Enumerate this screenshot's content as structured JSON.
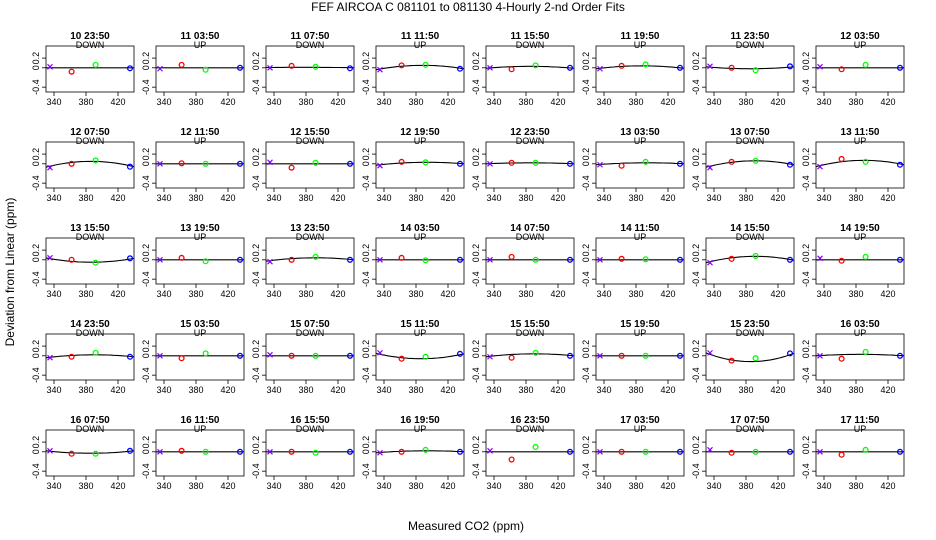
{
  "chart_data": {
    "type": "scatter",
    "title": "FEF   AIRCOA C   081101 to 081130   4-Hourly 2-nd Order Fits",
    "xlabel": "Measured CO2 (ppm)",
    "ylabel": "Deviation from Linear (ppm)",
    "xlim": [
      330,
      440
    ],
    "ylim": [
      -0.5,
      0.45
    ],
    "xticks": [
      340,
      380,
      420
    ],
    "yticks": [
      -0.4,
      0.0,
      0.2
    ],
    "ytick_labels": [
      "-0.4",
      "0",
      "0.2"
    ],
    "grid": false,
    "marker_x": [
      335,
      362,
      392,
      435
    ],
    "series": [
      {
        "color": "#8000ff",
        "marker": "x"
      },
      {
        "color": "#ff0000",
        "marker": "o"
      },
      {
        "color": "#00ff00",
        "marker": "o"
      },
      {
        "color": "#0000ff",
        "marker": "o"
      }
    ],
    "panels": [
      {
        "title": "10 23:50",
        "dir": "DOWN",
        "y": [
          0.02,
          -0.08,
          0.06,
          -0.01
        ],
        "curve": [
          0,
          0,
          0
        ]
      },
      {
        "title": "11 03:50",
        "dir": "UP",
        "y": [
          -0.02,
          0.06,
          -0.04,
          0.0
        ],
        "curve": [
          0,
          0,
          0
        ]
      },
      {
        "title": "11 07:50",
        "dir": "DOWN",
        "y": [
          0.0,
          0.04,
          0.02,
          -0.01
        ],
        "curve": [
          0.005,
          0.01,
          0.0
        ]
      },
      {
        "title": "11 11:50",
        "dir": "UP",
        "y": [
          -0.04,
          0.05,
          0.06,
          -0.02
        ],
        "curve": [
          -0.04,
          0.05,
          -0.02
        ]
      },
      {
        "title": "11 15:50",
        "dir": "DOWN",
        "y": [
          0.0,
          -0.03,
          0.05,
          0.0
        ],
        "curve": [
          -0.01,
          0.03,
          -0.01
        ]
      },
      {
        "title": "11 19:50",
        "dir": "UP",
        "y": [
          -0.02,
          0.04,
          0.07,
          0.0
        ],
        "curve": [
          -0.02,
          0.04,
          -0.01
        ]
      },
      {
        "title": "11 23:50",
        "dir": "DOWN",
        "y": [
          0.03,
          0.0,
          -0.05,
          0.03
        ],
        "curve": [
          0.02,
          -0.02,
          0.02
        ]
      },
      {
        "title": "12 03:50",
        "dir": "UP",
        "y": [
          0.02,
          -0.03,
          0.06,
          0.0
        ],
        "curve": [
          0,
          0,
          0
        ]
      },
      {
        "title": "12 07:50",
        "dir": "DOWN",
        "y": [
          -0.08,
          0.0,
          0.07,
          -0.06
        ],
        "curve": [
          -0.07,
          0.05,
          -0.06
        ]
      },
      {
        "title": "12 11:50",
        "dir": "UP",
        "y": [
          0.0,
          0.01,
          0.0,
          0.0
        ],
        "curve": [
          0,
          0,
          0
        ]
      },
      {
        "title": "12 15:50",
        "dir": "DOWN",
        "y": [
          0.03,
          -0.08,
          0.02,
          0.0
        ],
        "curve": [
          0,
          0,
          0
        ]
      },
      {
        "title": "12 19:50",
        "dir": "UP",
        "y": [
          -0.04,
          0.04,
          0.03,
          0.0
        ],
        "curve": [
          -0.03,
          0.03,
          0.0
        ]
      },
      {
        "title": "12 23:50",
        "dir": "DOWN",
        "y": [
          0.0,
          0.02,
          0.02,
          0.0
        ],
        "curve": [
          0,
          0.02,
          0
        ]
      },
      {
        "title": "13 03:50",
        "dir": "UP",
        "y": [
          -0.02,
          -0.04,
          0.04,
          0.0
        ],
        "curve": [
          -0.02,
          0.02,
          0.0
        ]
      },
      {
        "title": "13 07:50",
        "dir": "DOWN",
        "y": [
          -0.08,
          0.04,
          0.06,
          -0.02
        ],
        "curve": [
          -0.07,
          0.06,
          -0.02
        ]
      },
      {
        "title": "13 11:50",
        "dir": "UP",
        "y": [
          -0.06,
          0.1,
          0.04,
          -0.02
        ],
        "curve": [
          -0.06,
          0.07,
          -0.02
        ]
      },
      {
        "title": "13 15:50",
        "dir": "DOWN",
        "y": [
          0.04,
          0.0,
          -0.06,
          0.03
        ],
        "curve": [
          0.04,
          -0.05,
          0.03
        ]
      },
      {
        "title": "13 19:50",
        "dir": "UP",
        "y": [
          0.0,
          0.04,
          -0.03,
          0.0
        ],
        "curve": [
          0,
          0,
          0
        ]
      },
      {
        "title": "13 23:50",
        "dir": "DOWN",
        "y": [
          -0.04,
          0.0,
          0.06,
          0.0
        ],
        "curve": [
          -0.03,
          0.04,
          0.0
        ]
      },
      {
        "title": "14 03:50",
        "dir": "UP",
        "y": [
          0.0,
          0.04,
          -0.01,
          0.0
        ],
        "curve": [
          0,
          0,
          0
        ]
      },
      {
        "title": "14 07:50",
        "dir": "DOWN",
        "y": [
          0.0,
          0.06,
          0.0,
          0.0
        ],
        "curve": [
          0,
          0,
          0
        ]
      },
      {
        "title": "14 11:50",
        "dir": "UP",
        "y": [
          0.0,
          0.02,
          0.01,
          0.0
        ],
        "curve": [
          0,
          0,
          0
        ]
      },
      {
        "title": "14 15:50",
        "dir": "DOWN",
        "y": [
          -0.06,
          0.02,
          0.08,
          0.0
        ],
        "curve": [
          -0.06,
          0.07,
          -0.01
        ]
      },
      {
        "title": "14 19:50",
        "dir": "UP",
        "y": [
          0.03,
          -0.02,
          0.06,
          0.0
        ],
        "curve": [
          0,
          0,
          0
        ]
      },
      {
        "title": "14 23:50",
        "dir": "DOWN",
        "y": [
          -0.04,
          -0.02,
          0.06,
          -0.02
        ],
        "curve": [
          -0.04,
          0.02,
          -0.02
        ]
      },
      {
        "title": "15 03:50",
        "dir": "UP",
        "y": [
          0.0,
          -0.05,
          0.05,
          0.0
        ],
        "curve": [
          0,
          0,
          0
        ]
      },
      {
        "title": "15 07:50",
        "dir": "DOWN",
        "y": [
          0.02,
          0.0,
          0.0,
          0.0
        ],
        "curve": [
          0,
          0,
          0
        ]
      },
      {
        "title": "15 11:50",
        "dir": "UP",
        "y": [
          0.06,
          -0.06,
          -0.02,
          0.04
        ],
        "curve": [
          0.05,
          -0.06,
          0.04
        ]
      },
      {
        "title": "15 15:50",
        "dir": "DOWN",
        "y": [
          -0.02,
          -0.04,
          0.06,
          0.0
        ],
        "curve": [
          -0.02,
          0.04,
          0.0
        ]
      },
      {
        "title": "15 19:50",
        "dir": "UP",
        "y": [
          0.0,
          0.0,
          0.0,
          0.0
        ],
        "curve": [
          0,
          0,
          0
        ]
      },
      {
        "title": "15 23:50",
        "dir": "DOWN",
        "y": [
          0.06,
          -0.1,
          -0.05,
          0.05
        ],
        "curve": [
          0.06,
          -0.12,
          0.05
        ]
      },
      {
        "title": "16 03:50",
        "dir": "UP",
        "y": [
          0.0,
          -0.06,
          0.08,
          0.0
        ],
        "curve": [
          0,
          0.03,
          0
        ]
      },
      {
        "title": "16 07:50",
        "dir": "DOWN",
        "y": [
          0.02,
          -0.04,
          -0.04,
          0.02
        ],
        "curve": [
          0.02,
          -0.03,
          0.02
        ]
      },
      {
        "title": "16 11:50",
        "dir": "UP",
        "y": [
          0.0,
          0.02,
          0.0,
          0.0
        ],
        "curve": [
          0,
          0,
          0
        ]
      },
      {
        "title": "16 15:50",
        "dir": "DOWN",
        "y": [
          0.0,
          0.0,
          -0.02,
          0.0
        ],
        "curve": [
          0,
          0,
          0
        ]
      },
      {
        "title": "16 19:50",
        "dir": "UP",
        "y": [
          -0.02,
          0.0,
          0.04,
          0.0
        ],
        "curve": [
          -0.02,
          0.02,
          0.0
        ]
      },
      {
        "title": "16 23:50",
        "dir": "DOWN",
        "y": [
          0.02,
          -0.16,
          0.1,
          0.0
        ],
        "curve": [
          0,
          0,
          0
        ]
      },
      {
        "title": "17 03:50",
        "dir": "UP",
        "y": [
          0.0,
          0.0,
          0.0,
          0.0
        ],
        "curve": [
          0,
          0,
          0
        ]
      },
      {
        "title": "17 07:50",
        "dir": "DOWN",
        "y": [
          0.04,
          -0.02,
          0.0,
          0.0
        ],
        "curve": [
          0,
          0,
          0
        ]
      },
      {
        "title": "17 11:50",
        "dir": "UP",
        "y": [
          0.0,
          -0.06,
          0.04,
          0.0
        ],
        "curve": [
          0,
          0,
          0
        ]
      }
    ]
  }
}
